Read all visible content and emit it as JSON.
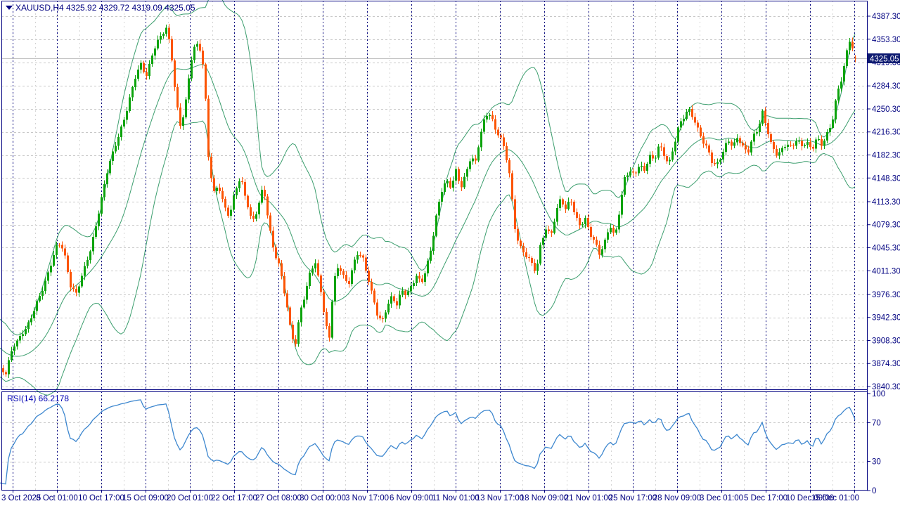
{
  "window": {
    "title": "XAUUSD,H4  4325.92 4329.72 4319.09 4325.05"
  },
  "chart_data": {
    "type": "candlestick",
    "symbol": "XAUUSD",
    "timeframe": "H4",
    "title": "XAUUSD,H4  4325.92 4329.72 4319.09 4325.05",
    "ohlc_current": {
      "open": 4325.92,
      "high": 4329.72,
      "low": 4319.09,
      "close": 4325.05
    },
    "current_price_label": "4325.05",
    "ylim": [
      3840.3,
      4387.3
    ],
    "grid": true,
    "price_axis_ticks": [
      "4387.30",
      "4353.30",
      "4319.30",
      "4284.30",
      "4250.30",
      "4216.30",
      "4182.30",
      "4148.30",
      "4113.30",
      "4079.30",
      "4045.30",
      "4011.30",
      "3976.30",
      "3942.30",
      "3908.30",
      "3874.30",
      "3840.30"
    ],
    "time_axis_labels": [
      "3 Oct 2025",
      "8 Oct 01:00",
      "10 Oct 17:00",
      "15 Oct 09:00",
      "20 Oct 01:00",
      "22 Oct 17:00",
      "27 Oct 08:00",
      "30 Oct 00:00",
      "3 Nov 17:00",
      "6 Nov 09:00",
      "11 Nov 01:00",
      "13 Nov 17:00",
      "18 Nov 09:00",
      "21 Nov 01:00",
      "25 Nov 17:00",
      "28 Nov 09:00",
      "3 Dec 01:00",
      "5 Dec 17:00",
      "10 Dec 09:00",
      "15 Dec 01:00"
    ],
    "close_path": [
      [
        -96,
        3952
      ],
      [
        -60,
        3918
      ],
      [
        -30,
        3888
      ],
      [
        -10,
        3872
      ],
      [
        0,
        3866
      ],
      [
        8,
        3858
      ],
      [
        18,
        3898
      ],
      [
        30,
        3920
      ],
      [
        42,
        3934
      ],
      [
        52,
        3962
      ],
      [
        62,
        3992
      ],
      [
        72,
        4022
      ],
      [
        82,
        4050
      ],
      [
        90,
        4042
      ],
      [
        100,
        3992
      ],
      [
        108,
        3978
      ],
      [
        118,
        4006
      ],
      [
        128,
        4042
      ],
      [
        140,
        4100
      ],
      [
        152,
        4155
      ],
      [
        162,
        4192
      ],
      [
        172,
        4225
      ],
      [
        182,
        4255
      ],
      [
        192,
        4295
      ],
      [
        200,
        4318
      ],
      [
        208,
        4302
      ],
      [
        216,
        4330
      ],
      [
        228,
        4356
      ],
      [
        237,
        4372
      ],
      [
        243,
        4338
      ],
      [
        250,
        4262
      ],
      [
        257,
        4218
      ],
      [
        264,
        4260
      ],
      [
        271,
        4322
      ],
      [
        278,
        4352
      ],
      [
        284,
        4340
      ],
      [
        290,
        4302
      ],
      [
        296,
        4178
      ],
      [
        303,
        4124
      ],
      [
        310,
        4142
      ],
      [
        318,
        4110
      ],
      [
        326,
        4088
      ],
      [
        334,
        4128
      ],
      [
        342,
        4150
      ],
      [
        350,
        4118
      ],
      [
        358,
        4082
      ],
      [
        366,
        4098
      ],
      [
        374,
        4138
      ],
      [
        382,
        4082
      ],
      [
        390,
        4038
      ],
      [
        398,
        4012
      ],
      [
        406,
        3966
      ],
      [
        414,
        3920
      ],
      [
        420,
        3906
      ],
      [
        427,
        3956
      ],
      [
        434,
        3972
      ],
      [
        441,
        4012
      ],
      [
        448,
        4022
      ],
      [
        455,
        3994
      ],
      [
        462,
        3934
      ],
      [
        468,
        3912
      ],
      [
        474,
        3990
      ],
      [
        481,
        4020
      ],
      [
        488,
        4006
      ],
      [
        495,
        3992
      ],
      [
        502,
        4018
      ],
      [
        509,
        4036
      ],
      [
        516,
        4028
      ],
      [
        523,
        4004
      ],
      [
        530,
        3974
      ],
      [
        537,
        3942
      ],
      [
        543,
        3932
      ],
      [
        550,
        3958
      ],
      [
        557,
        3976
      ],
      [
        564,
        3964
      ],
      [
        571,
        3982
      ],
      [
        578,
        3972
      ],
      [
        585,
        3988
      ],
      [
        592,
        4006
      ],
      [
        599,
        3996
      ],
      [
        606,
        4014
      ],
      [
        613,
        4042
      ],
      [
        620,
        4090
      ],
      [
        627,
        4130
      ],
      [
        634,
        4148
      ],
      [
        641,
        4134
      ],
      [
        648,
        4156
      ],
      [
        655,
        4132
      ],
      [
        662,
        4156
      ],
      [
        669,
        4182
      ],
      [
        676,
        4172
      ],
      [
        683,
        4210
      ],
      [
        690,
        4238
      ],
      [
        697,
        4246
      ],
      [
        704,
        4222
      ],
      [
        711,
        4210
      ],
      [
        718,
        4184
      ],
      [
        725,
        4148
      ],
      [
        731,
        4080
      ],
      [
        738,
        4052
      ],
      [
        745,
        4038
      ],
      [
        752,
        4026
      ],
      [
        762,
        4008
      ],
      [
        769,
        4056
      ],
      [
        776,
        4076
      ],
      [
        783,
        4062
      ],
      [
        790,
        4092
      ],
      [
        797,
        4118
      ],
      [
        804,
        4104
      ],
      [
        811,
        4122
      ],
      [
        818,
        4090
      ],
      [
        825,
        4074
      ],
      [
        832,
        4086
      ],
      [
        839,
        4068
      ],
      [
        846,
        4056
      ],
      [
        853,
        4034
      ],
      [
        860,
        4052
      ],
      [
        867,
        4078
      ],
      [
        874,
        4062
      ],
      [
        881,
        4106
      ],
      [
        888,
        4148
      ],
      [
        895,
        4156
      ],
      [
        902,
        4150
      ],
      [
        909,
        4170
      ],
      [
        916,
        4162
      ],
      [
        923,
        4182
      ],
      [
        930,
        4170
      ],
      [
        937,
        4196
      ],
      [
        944,
        4184
      ],
      [
        951,
        4172
      ],
      [
        958,
        4196
      ],
      [
        965,
        4222
      ],
      [
        972,
        4236
      ],
      [
        979,
        4252
      ],
      [
        986,
        4240
      ],
      [
        993,
        4218
      ],
      [
        1000,
        4198
      ],
      [
        1007,
        4186
      ],
      [
        1014,
        4168
      ],
      [
        1021,
        4174
      ],
      [
        1028,
        4188
      ],
      [
        1035,
        4202
      ],
      [
        1042,
        4192
      ],
      [
        1049,
        4210
      ],
      [
        1056,
        4198
      ],
      [
        1063,
        4186
      ],
      [
        1070,
        4206
      ],
      [
        1077,
        4216
      ],
      [
        1084,
        4246
      ],
      [
        1091,
        4222
      ],
      [
        1098,
        4194
      ],
      [
        1105,
        4180
      ],
      [
        1112,
        4188
      ],
      [
        1119,
        4200
      ],
      [
        1126,
        4196
      ],
      [
        1133,
        4208
      ],
      [
        1140,
        4192
      ],
      [
        1147,
        4200
      ],
      [
        1154,
        4188
      ],
      [
        1161,
        4212
      ],
      [
        1168,
        4198
      ],
      [
        1175,
        4210
      ],
      [
        1182,
        4222
      ],
      [
        1189,
        4268
      ],
      [
        1196,
        4296
      ],
      [
        1203,
        4332
      ],
      [
        1208,
        4350
      ],
      [
        1213,
        4336
      ],
      [
        1216,
        4325.05
      ]
    ],
    "indicators": {
      "bollinger": {
        "period": 20,
        "deviation": 2
      },
      "rsi": {
        "label": "RSI(14) 66.2178",
        "period": 14,
        "current": 66.2178,
        "axis_ticks": [
          "100",
          "70",
          "30",
          "0"
        ],
        "levels": [
          70,
          30
        ]
      }
    },
    "colors": {
      "up": "#0ca30c",
      "down": "#fc5404",
      "bands": "#3c9e6e",
      "rsi_line": "#3d87cf",
      "grid_gray": "#c8c8c8",
      "grid_navy": "#000080",
      "axis_text": "#000080",
      "frame": "#000080",
      "price_line": "#bdbdbd",
      "price_label_bg": "#0d1a70",
      "price_label_text": "#ffffff"
    }
  }
}
